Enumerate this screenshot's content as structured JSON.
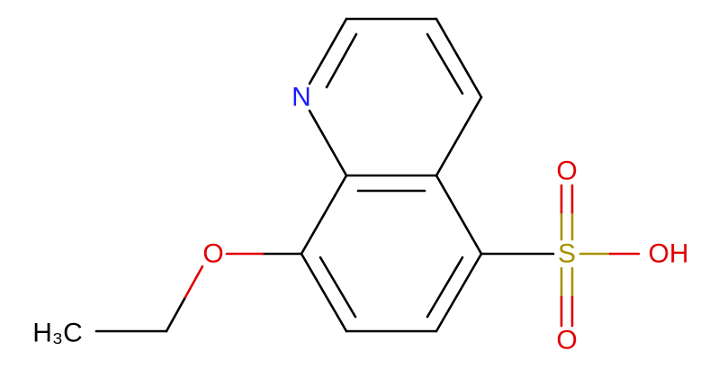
{
  "atoms": [
    {
      "label": "N"
    },
    {
      "label": "O"
    },
    {
      "label": "H₃C"
    },
    {
      "label": "S"
    },
    {
      "label": "O"
    },
    {
      "label": "O"
    },
    {
      "label": "OH"
    }
  ]
}
